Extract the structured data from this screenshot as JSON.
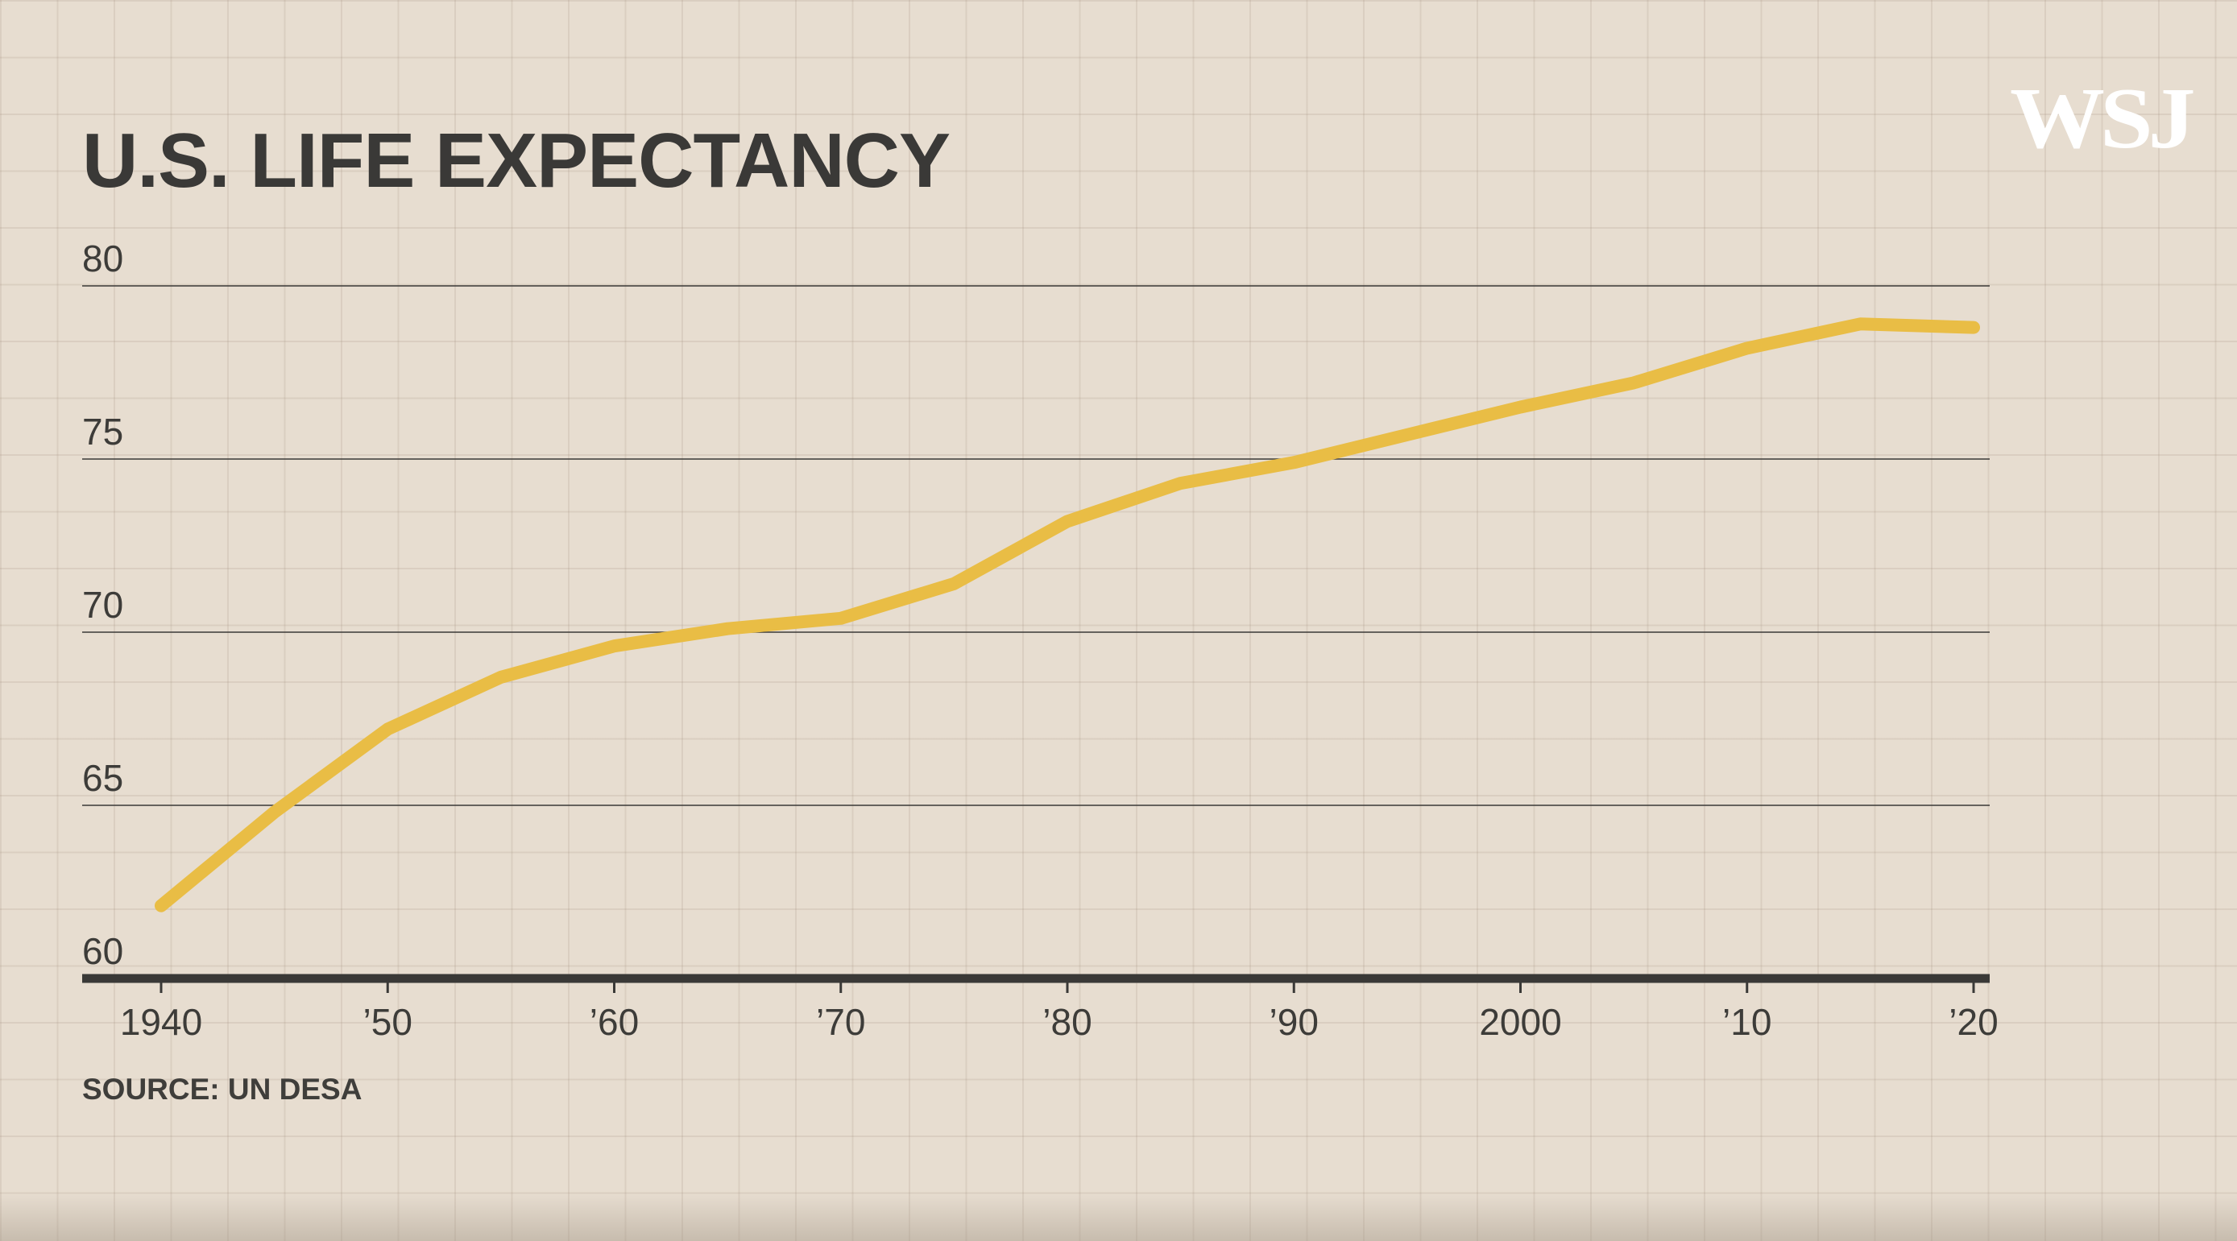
{
  "title": "U.S. LIFE EXPECTANCY",
  "logo": "WSJ",
  "source": "SOURCE: UN DESA",
  "colors": {
    "line": "#e9bd45",
    "text": "#3a3937",
    "background": "#e7ddd0",
    "axis": "#3a3937"
  },
  "chart_data": {
    "type": "line",
    "title": "U.S. LIFE EXPECTANCY",
    "xlabel": "",
    "ylabel": "",
    "ylim": [
      60,
      80
    ],
    "xlim": [
      1940,
      2020
    ],
    "yticks": [
      60,
      65,
      70,
      75,
      80
    ],
    "ytick_labels": [
      "60",
      "65",
      "70",
      "75",
      "80"
    ],
    "xticks": [
      1940,
      1950,
      1960,
      1970,
      1980,
      1990,
      2000,
      2010,
      2020
    ],
    "xtick_labels": [
      "1940",
      "’50",
      "’60",
      "’70",
      "’80",
      "’90",
      "2000",
      "’10",
      "’20"
    ],
    "grid": true,
    "legend": "none",
    "series": [
      {
        "x": [
          1940,
          1945,
          1950,
          1955,
          1960,
          1965,
          1970,
          1975,
          1980,
          1985,
          1990,
          1995,
          2000,
          2005,
          2010,
          2015,
          2020
        ],
        "y": [
          62.1,
          64.8,
          67.2,
          68.7,
          69.6,
          70.1,
          70.4,
          71.4,
          73.2,
          74.3,
          74.9,
          75.7,
          76.5,
          77.2,
          78.2,
          78.9,
          78.8
        ]
      }
    ]
  }
}
